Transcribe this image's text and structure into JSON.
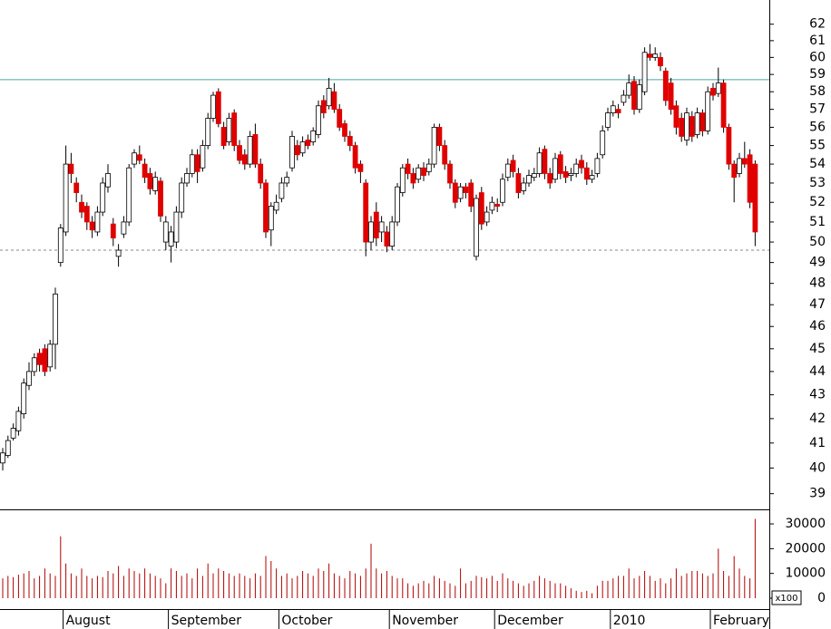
{
  "chart_data": [
    {
      "type": "candlestick",
      "log_scale": true,
      "up_color": "#ffffff",
      "down_color": "#e00000",
      "edge_color": "#000000",
      "ylim": [
        38.4,
        63.5
      ],
      "yticks": [
        39,
        40,
        41,
        42,
        43,
        44,
        45,
        46,
        47,
        48,
        49,
        50,
        51,
        52,
        53,
        54,
        55,
        56,
        57,
        58,
        59,
        60,
        61,
        62
      ],
      "hlines": [
        {
          "value": 58.7,
          "color": "#4aa6a6",
          "dashed": false
        },
        {
          "value": 49.6,
          "color": "#888888",
          "dashed": true
        }
      ],
      "categories": [
        null,
        null,
        null,
        null,
        null,
        null,
        null,
        null,
        null,
        null,
        null,
        null,
        "August",
        null,
        null,
        null,
        null,
        null,
        null,
        null,
        null,
        null,
        null,
        null,
        null,
        null,
        null,
        null,
        null,
        null,
        null,
        null,
        "September",
        null,
        null,
        null,
        null,
        null,
        null,
        null,
        null,
        null,
        null,
        null,
        null,
        null,
        null,
        null,
        null,
        null,
        null,
        null,
        null,
        "October",
        null,
        null,
        null,
        null,
        null,
        null,
        null,
        null,
        null,
        null,
        null,
        null,
        null,
        null,
        null,
        null,
        null,
        null,
        null,
        null,
        "November",
        null,
        null,
        null,
        null,
        null,
        null,
        null,
        null,
        null,
        null,
        null,
        null,
        null,
        null,
        null,
        null,
        null,
        null,
        null,
        "December",
        null,
        null,
        null,
        null,
        null,
        null,
        null,
        null,
        null,
        null,
        null,
        null,
        null,
        null,
        null,
        null,
        null,
        null,
        null,
        null,
        null,
        "2010",
        null,
        null,
        null,
        null,
        null,
        null,
        null,
        null,
        null,
        null,
        null,
        null,
        null,
        null,
        null,
        null,
        null,
        null,
        "February",
        null,
        null,
        null,
        null,
        null,
        null,
        null,
        null
      ],
      "open": [
        40.2,
        40.5,
        41.2,
        41.5,
        42.2,
        43.4,
        44.0,
        44.8,
        45.0,
        44.2,
        45.2,
        49.0,
        50.5,
        54.0,
        53.0,
        52.0,
        51.8,
        51.0,
        50.5,
        51.5,
        52.8,
        50.9,
        49.3,
        50.4,
        51.0,
        54.0,
        54.5,
        54.0,
        53.5,
        52.6,
        53.1,
        50.0,
        49.8,
        50.0,
        51.5,
        53.0,
        53.5,
        54.5,
        53.8,
        55.0,
        56.5,
        58.0,
        56.0,
        55.2,
        56.8,
        55.0,
        54.5,
        54.0,
        55.6,
        54.0,
        53.0,
        50.6,
        51.6,
        52.2,
        53.0,
        53.8,
        55.0,
        54.6,
        55.3,
        55.2,
        55.6,
        57.5,
        57.2,
        58.0,
        57.0,
        56.2,
        55.5,
        55.0,
        54.0,
        53.0,
        50.0,
        51.5,
        50.5,
        50.5,
        49.8,
        51.0,
        52.5,
        54.0,
        53.5,
        53.2,
        53.8,
        53.6,
        54.0,
        56.0,
        55.0,
        54.0,
        53.0,
        52.2,
        52.8,
        53.0,
        49.3,
        52.5,
        51.0,
        51.6,
        51.9,
        52.0,
        53.3,
        54.2,
        53.5,
        52.6,
        53.0,
        53.3,
        53.5,
        54.8,
        53.5,
        53.2,
        54.5,
        53.6,
        53.4,
        53.5,
        54.2,
        53.8,
        53.2,
        53.5,
        54.5,
        56.0,
        56.8,
        57.0,
        57.4,
        57.8,
        58.6,
        57.0,
        58.0,
        60.2,
        60.0,
        60.0,
        59.2,
        58.5,
        57.2,
        56.5,
        55.3,
        56.6,
        55.6,
        56.8,
        55.8,
        58.2,
        57.9,
        58.5,
        56.0,
        54.0,
        53.5,
        54.3,
        54.5,
        54.0
      ],
      "high": [
        40.8,
        41.3,
        41.8,
        42.5,
        43.7,
        44.4,
        44.8,
        45.0,
        45.2,
        45.4,
        47.8,
        50.9,
        55.0,
        54.6,
        53.3,
        52.4,
        52.0,
        51.3,
        51.8,
        53.3,
        54.0,
        51.2,
        49.9,
        51.3,
        54.0,
        54.8,
        55.0,
        54.3,
        53.8,
        53.6,
        53.3,
        51.3,
        50.8,
        51.8,
        53.3,
        53.8,
        54.8,
        54.8,
        55.3,
        56.8,
        58.0,
        58.2,
        56.3,
        56.8,
        57.0,
        55.3,
        54.8,
        55.8,
        56.2,
        54.3,
        53.2,
        52.0,
        52.4,
        53.3,
        53.6,
        55.8,
        55.3,
        55.5,
        55.6,
        56.0,
        57.5,
        57.8,
        58.8,
        58.5,
        57.3,
        56.4,
        55.8,
        55.2,
        54.2,
        53.2,
        51.3,
        52.0,
        51.3,
        50.8,
        51.3,
        53.0,
        54.0,
        54.3,
        53.8,
        54.0,
        54.1,
        54.3,
        56.2,
        56.2,
        55.3,
        54.2,
        53.2,
        53.0,
        53.0,
        53.2,
        52.4,
        52.8,
        51.8,
        52.3,
        52.2,
        53.5,
        54.3,
        54.5,
        53.8,
        53.3,
        53.7,
        53.8,
        54.9,
        55.0,
        53.8,
        54.6,
        54.7,
        53.9,
        53.8,
        54.3,
        54.5,
        54.1,
        53.7,
        54.6,
        56.1,
        57.1,
        57.5,
        57.3,
        58.1,
        59.0,
        58.9,
        58.7,
        60.6,
        60.8,
        60.6,
        60.3,
        59.4,
        58.8,
        57.5,
        56.8,
        57.1,
        56.9,
        57.1,
        57.0,
        58.3,
        58.5,
        59.4,
        58.7,
        56.2,
        54.2,
        54.6,
        55.2,
        54.8,
        54.2
      ],
      "low": [
        39.9,
        40.4,
        41.1,
        41.3,
        42.0,
        43.2,
        43.8,
        44.0,
        43.8,
        44.0,
        44.1,
        48.8,
        50.3,
        53.0,
        52.0,
        51.2,
        50.6,
        50.2,
        50.3,
        51.3,
        52.5,
        49.8,
        48.8,
        50.2,
        50.8,
        53.8,
        54.0,
        53.0,
        52.4,
        52.4,
        51.0,
        49.6,
        49.0,
        49.7,
        51.2,
        52.8,
        53.3,
        53.0,
        53.6,
        54.8,
        56.3,
        56.0,
        54.8,
        55.0,
        54.7,
        54.0,
        53.7,
        53.8,
        53.8,
        52.7,
        50.2,
        49.8,
        51.4,
        52.0,
        52.8,
        53.6,
        54.2,
        54.4,
        54.8,
        55.0,
        55.4,
        56.5,
        57.0,
        56.8,
        55.8,
        55.2,
        54.7,
        53.5,
        53.0,
        49.3,
        49.6,
        49.8,
        50.0,
        49.5,
        49.6,
        50.8,
        52.3,
        53.2,
        52.7,
        53.0,
        53.1,
        53.4,
        53.8,
        54.7,
        53.7,
        52.7,
        51.7,
        52.0,
        52.2,
        51.5,
        49.1,
        50.6,
        50.8,
        51.4,
        51.5,
        51.8,
        53.1,
        53.3,
        52.2,
        52.4,
        52.8,
        53.1,
        53.3,
        53.2,
        52.7,
        53.0,
        53.2,
        53.0,
        53.1,
        53.3,
        53.5,
        52.9,
        53.0,
        53.3,
        54.3,
        55.8,
        56.6,
        56.5,
        57.2,
        57.6,
        56.7,
        56.8,
        57.8,
        59.8,
        59.8,
        59.2,
        57.2,
        56.7,
        55.6,
        55.2,
        55.0,
        55.2,
        55.4,
        55.5,
        55.6,
        57.5,
        57.7,
        55.7,
        53.7,
        52.0,
        53.3,
        53.8,
        51.7,
        49.8
      ],
      "close": [
        40.6,
        41.1,
        41.6,
        42.3,
        43.5,
        44.0,
        44.6,
        44.3,
        44.0,
        45.2,
        47.5,
        50.7,
        54.0,
        53.5,
        52.5,
        51.5,
        51.0,
        50.6,
        51.5,
        53.0,
        53.5,
        50.2,
        49.6,
        51.0,
        53.8,
        54.6,
        54.2,
        53.3,
        52.7,
        53.3,
        51.3,
        51.0,
        50.5,
        51.5,
        53.0,
        53.5,
        54.5,
        53.6,
        55.0,
        56.5,
        57.8,
        56.2,
        55.0,
        56.5,
        55.0,
        54.2,
        54.0,
        55.5,
        54.0,
        53.0,
        50.5,
        51.8,
        52.0,
        53.0,
        53.3,
        55.5,
        54.5,
        55.2,
        55.0,
        55.8,
        57.2,
        56.8,
        58.2,
        57.0,
        56.0,
        55.5,
        55.0,
        53.8,
        53.6,
        50.0,
        51.0,
        50.2,
        51.0,
        49.8,
        51.0,
        52.8,
        53.8,
        53.5,
        53.0,
        53.8,
        53.4,
        54.0,
        56.0,
        55.0,
        54.0,
        53.0,
        52.0,
        52.8,
        52.5,
        51.8,
        52.2,
        50.9,
        51.5,
        52.0,
        51.8,
        53.2,
        54.0,
        53.6,
        52.5,
        53.0,
        53.4,
        53.5,
        54.6,
        53.5,
        53.0,
        54.3,
        53.5,
        53.3,
        53.5,
        54.0,
        53.8,
        53.2,
        53.4,
        54.3,
        55.8,
        56.8,
        57.2,
        56.8,
        57.8,
        58.5,
        57.0,
        58.4,
        60.3,
        60.0,
        60.2,
        59.5,
        57.5,
        57.0,
        56.0,
        55.5,
        56.8,
        55.5,
        56.8,
        55.8,
        58.0,
        57.8,
        58.5,
        56.0,
        54.0,
        53.3,
        54.3,
        54.0,
        52.0,
        50.5
      ]
    },
    {
      "type": "volume",
      "color": "#b00000",
      "annotation": "x100",
      "ylim": [
        0,
        35500
      ],
      "yticks": [
        0,
        10000,
        20000,
        30000
      ],
      "values": [
        8000,
        9000,
        8500,
        9500,
        10000,
        11000,
        8000,
        9000,
        12000,
        10000,
        9000,
        25000,
        14000,
        10000,
        9000,
        12000,
        9000,
        8000,
        9000,
        8500,
        11000,
        10000,
        13000,
        9000,
        12000,
        11000,
        10000,
        12000,
        10000,
        9000,
        8000,
        6000,
        12000,
        11000,
        9000,
        10000,
        8000,
        12000,
        9000,
        14000,
        10000,
        12000,
        11000,
        10000,
        9000,
        10000,
        9000,
        8000,
        10000,
        9000,
        17000,
        15000,
        12000,
        9000,
        10000,
        8000,
        9000,
        11000,
        10000,
        9000,
        12000,
        11000,
        14000,
        10000,
        9000,
        8000,
        11000,
        10000,
        9000,
        12000,
        22000,
        12000,
        10000,
        11000,
        9000,
        8000,
        8000,
        6000,
        5000,
        6000,
        7000,
        6000,
        9000,
        8000,
        7000,
        6000,
        5000,
        12000,
        6000,
        7000,
        9000,
        8500,
        8000,
        9000,
        7000,
        10000,
        8000,
        7000,
        6000,
        5000,
        6000,
        7000,
        9000,
        8000,
        7000,
        6000,
        6000,
        5000,
        4000,
        3000,
        2500,
        3000,
        2000,
        5000,
        7000,
        7000,
        8000,
        9000,
        9000,
        12000,
        8000,
        9000,
        11000,
        9000,
        7000,
        8000,
        6000,
        8000,
        12000,
        9000,
        10000,
        11000,
        11000,
        10000,
        9000,
        10000,
        20000,
        11000,
        9000,
        17000,
        12000,
        9000,
        8000,
        32000
      ]
    }
  ]
}
